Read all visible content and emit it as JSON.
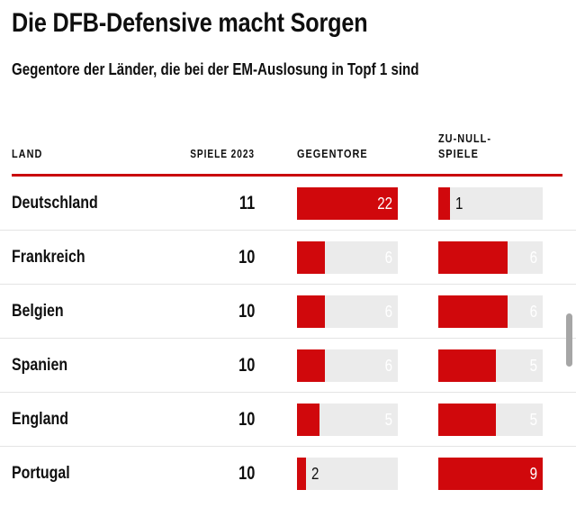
{
  "header": {
    "title": "Die DFB-Defensive macht Sorgen",
    "subtitle": "Gegentore der Länder, die bei der EM-Auslosung in Topf 1 sind"
  },
  "table": {
    "columns": {
      "land": "LAND",
      "spiele": "SPIELE 2023",
      "gegentore": "GEGENTORE",
      "zunull": "ZU-NULL-\nSPIELE"
    }
  },
  "chart_data": {
    "type": "bar",
    "title": "Die DFB-Defensive macht Sorgen",
    "subtitle": "Gegentore der Länder, die bei der EM-Auslosung in Topf 1 sind",
    "categories": [
      "Deutschland",
      "Frankreich",
      "Belgien",
      "Spanien",
      "England",
      "Portugal"
    ],
    "series": [
      {
        "name": "Spiele 2023",
        "display": "number",
        "values": [
          11,
          10,
          10,
          10,
          10,
          10
        ]
      },
      {
        "name": "Gegentore",
        "display": "bar",
        "values": [
          22,
          6,
          6,
          6,
          5,
          2
        ],
        "axis_max": 22
      },
      {
        "name": "Zu-null-Spiele",
        "display": "bar",
        "values": [
          1,
          6,
          6,
          5,
          5,
          9
        ],
        "axis_max": 9
      }
    ],
    "legend_position": "none",
    "grid": false,
    "colors": {
      "bar_fill": "#d0080c",
      "bar_background": "#ebebeb",
      "header_rule": "#c9060d",
      "text": "#0f0f0f",
      "row_divider": "#e4e4e4"
    }
  }
}
